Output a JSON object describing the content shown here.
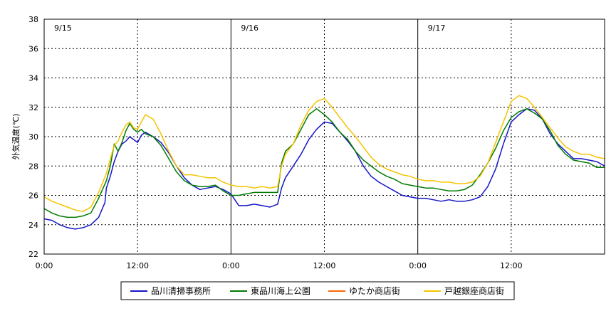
{
  "chart_data": {
    "type": "line",
    "ylabel": "外気温度(℃)",
    "ylim": [
      22,
      38
    ],
    "yticks": [
      "22",
      "24",
      "26",
      "28",
      "30",
      "32",
      "34",
      "36",
      "38"
    ],
    "xlim_hours": [
      0,
      72
    ],
    "xticks": [
      {
        "hour": 0,
        "label": "0:00"
      },
      {
        "hour": 12,
        "label": "12:00"
      },
      {
        "hour": 24,
        "label": "0:00"
      },
      {
        "hour": 36,
        "label": "12:00"
      },
      {
        "hour": 48,
        "label": "0:00"
      },
      {
        "hour": 60,
        "label": "12:00"
      }
    ],
    "day_labels": [
      {
        "hour": 0,
        "label": "9/15"
      },
      {
        "hour": 24,
        "label": "9/16"
      },
      {
        "hour": 48,
        "label": "9/17"
      }
    ],
    "grid": "dotted",
    "legend_position": "bottom",
    "series": [
      {
        "name": "品川清掃事務所",
        "color": "#1515c8",
        "points": [
          [
            0,
            24.4
          ],
          [
            1,
            24.3
          ],
          [
            2,
            24.0
          ],
          [
            3,
            23.8
          ],
          [
            4,
            23.7
          ],
          [
            5,
            23.8
          ],
          [
            6,
            24.0
          ],
          [
            7,
            24.5
          ],
          [
            7.8,
            25.5
          ],
          [
            8,
            26.5
          ],
          [
            8.5,
            27.3
          ],
          [
            9,
            28.3
          ],
          [
            9.5,
            29.0
          ],
          [
            10,
            29.5
          ],
          [
            10.5,
            29.7
          ],
          [
            11,
            30.0
          ],
          [
            11.5,
            29.8
          ],
          [
            12,
            29.6
          ],
          [
            12.5,
            30.1
          ],
          [
            13,
            30.3
          ],
          [
            14,
            30.0
          ],
          [
            15,
            29.6
          ],
          [
            16,
            28.9
          ],
          [
            17,
            28.0
          ],
          [
            18,
            27.2
          ],
          [
            19,
            26.7
          ],
          [
            20,
            26.4
          ],
          [
            21,
            26.5
          ],
          [
            22,
            26.6
          ],
          [
            23,
            26.4
          ],
          [
            24,
            26.1
          ],
          [
            25,
            25.3
          ],
          [
            26,
            25.3
          ],
          [
            27,
            25.4
          ],
          [
            28,
            25.3
          ],
          [
            29,
            25.2
          ],
          [
            30,
            25.4
          ],
          [
            30.5,
            26.5
          ],
          [
            31,
            27.2
          ],
          [
            32,
            28.0
          ],
          [
            33,
            28.8
          ],
          [
            34,
            29.8
          ],
          [
            35,
            30.5
          ],
          [
            36,
            31.0
          ],
          [
            37,
            30.9
          ],
          [
            38,
            30.3
          ],
          [
            39,
            29.7
          ],
          [
            40,
            29.0
          ],
          [
            41,
            28.0
          ],
          [
            42,
            27.3
          ],
          [
            43,
            26.9
          ],
          [
            44,
            26.6
          ],
          [
            45,
            26.3
          ],
          [
            46,
            26.0
          ],
          [
            47,
            25.9
          ],
          [
            48,
            25.8
          ],
          [
            49,
            25.8
          ],
          [
            50,
            25.7
          ],
          [
            51,
            25.6
          ],
          [
            52,
            25.7
          ],
          [
            53,
            25.6
          ],
          [
            54,
            25.6
          ],
          [
            55,
            25.7
          ],
          [
            56,
            25.9
          ],
          [
            57,
            26.6
          ],
          [
            58,
            27.8
          ],
          [
            59,
            29.5
          ],
          [
            60,
            31.0
          ],
          [
            61,
            31.5
          ],
          [
            62,
            31.9
          ],
          [
            63,
            31.8
          ],
          [
            64,
            31.2
          ],
          [
            65,
            30.2
          ],
          [
            66,
            29.5
          ],
          [
            67,
            29.0
          ],
          [
            68,
            28.5
          ],
          [
            69,
            28.5
          ],
          [
            70,
            28.4
          ],
          [
            71,
            28.3
          ],
          [
            72,
            28.0
          ]
        ]
      },
      {
        "name": "東品川海上公園",
        "color": "#007a00",
        "points": [
          [
            0,
            25.1
          ],
          [
            1,
            24.8
          ],
          [
            2,
            24.6
          ],
          [
            3,
            24.5
          ],
          [
            4,
            24.5
          ],
          [
            5,
            24.6
          ],
          [
            6,
            24.8
          ],
          [
            7,
            25.8
          ],
          [
            8,
            27.0
          ],
          [
            8.5,
            28.0
          ],
          [
            9,
            29.5
          ],
          [
            9.5,
            29.0
          ],
          [
            10,
            29.6
          ],
          [
            10.5,
            30.4
          ],
          [
            11,
            30.9
          ],
          [
            11.5,
            30.5
          ],
          [
            12,
            30.3
          ],
          [
            12.5,
            30.5
          ],
          [
            13,
            30.2
          ],
          [
            14,
            30.0
          ],
          [
            15,
            29.4
          ],
          [
            16,
            28.5
          ],
          [
            17,
            27.6
          ],
          [
            18,
            27.0
          ],
          [
            19,
            26.7
          ],
          [
            20,
            26.6
          ],
          [
            21,
            26.6
          ],
          [
            22,
            26.7
          ],
          [
            23,
            26.3
          ],
          [
            24,
            26.0
          ],
          [
            25,
            26.0
          ],
          [
            26,
            26.1
          ],
          [
            27,
            26.2
          ],
          [
            28,
            26.2
          ],
          [
            29,
            26.2
          ],
          [
            30,
            26.2
          ],
          [
            30.5,
            28.2
          ],
          [
            31,
            29.0
          ],
          [
            32,
            29.5
          ],
          [
            33,
            30.5
          ],
          [
            34,
            31.5
          ],
          [
            35,
            31.9
          ],
          [
            36,
            31.5
          ],
          [
            37,
            31.0
          ],
          [
            38,
            30.3
          ],
          [
            39,
            29.8
          ],
          [
            40,
            29.0
          ],
          [
            41,
            28.4
          ],
          [
            42,
            28.0
          ],
          [
            43,
            27.6
          ],
          [
            44,
            27.3
          ],
          [
            45,
            27.1
          ],
          [
            46,
            26.8
          ],
          [
            47,
            26.7
          ],
          [
            48,
            26.6
          ],
          [
            49,
            26.5
          ],
          [
            50,
            26.5
          ],
          [
            51,
            26.4
          ],
          [
            52,
            26.3
          ],
          [
            53,
            26.3
          ],
          [
            54,
            26.4
          ],
          [
            55,
            26.7
          ],
          [
            56,
            27.4
          ],
          [
            57,
            28.2
          ],
          [
            58,
            29.2
          ],
          [
            59,
            30.4
          ],
          [
            60,
            31.3
          ],
          [
            61,
            31.7
          ],
          [
            62,
            31.9
          ],
          [
            63,
            31.6
          ],
          [
            64,
            31.2
          ],
          [
            65,
            30.4
          ],
          [
            66,
            29.4
          ],
          [
            67,
            28.8
          ],
          [
            68,
            28.4
          ],
          [
            69,
            28.3
          ],
          [
            70,
            28.2
          ],
          [
            71,
            27.9
          ],
          [
            72,
            27.9
          ]
        ]
      },
      {
        "name": "ゆたか商店街",
        "color": "#ff6600",
        "points": []
      },
      {
        "name": "戸越銀座商店街",
        "color": "#f5c400",
        "points": [
          [
            0,
            25.9
          ],
          [
            1,
            25.6
          ],
          [
            2,
            25.4
          ],
          [
            3,
            25.2
          ],
          [
            4,
            25.0
          ],
          [
            5,
            24.9
          ],
          [
            6,
            25.2
          ],
          [
            7,
            26.2
          ],
          [
            8,
            27.5
          ],
          [
            8.5,
            28.5
          ],
          [
            9,
            29.4
          ],
          [
            9.5,
            29.7
          ],
          [
            10,
            30.3
          ],
          [
            10.5,
            30.8
          ],
          [
            11,
            31.0
          ],
          [
            11.5,
            30.6
          ],
          [
            12,
            30.5
          ],
          [
            12.5,
            31.0
          ],
          [
            13,
            31.5
          ],
          [
            14,
            31.2
          ],
          [
            15,
            30.2
          ],
          [
            16,
            29.0
          ],
          [
            17,
            28.0
          ],
          [
            18,
            27.4
          ],
          [
            19,
            27.4
          ],
          [
            20,
            27.3
          ],
          [
            21,
            27.2
          ],
          [
            22,
            27.2
          ],
          [
            23,
            26.9
          ],
          [
            24,
            26.7
          ],
          [
            25,
            26.6
          ],
          [
            26,
            26.6
          ],
          [
            27,
            26.5
          ],
          [
            28,
            26.6
          ],
          [
            29,
            26.5
          ],
          [
            30,
            26.6
          ],
          [
            30.5,
            28.0
          ],
          [
            31,
            28.8
          ],
          [
            32,
            29.5
          ],
          [
            33,
            30.8
          ],
          [
            34,
            31.8
          ],
          [
            35,
            32.4
          ],
          [
            36,
            32.6
          ],
          [
            37,
            32.0
          ],
          [
            38,
            31.3
          ],
          [
            39,
            30.6
          ],
          [
            40,
            30.0
          ],
          [
            41,
            29.3
          ],
          [
            42,
            28.6
          ],
          [
            43,
            28.1
          ],
          [
            44,
            27.8
          ],
          [
            45,
            27.6
          ],
          [
            46,
            27.4
          ],
          [
            47,
            27.3
          ],
          [
            48,
            27.1
          ],
          [
            49,
            27.0
          ],
          [
            50,
            27.0
          ],
          [
            51,
            26.9
          ],
          [
            52,
            26.9
          ],
          [
            53,
            26.8
          ],
          [
            54,
            26.8
          ],
          [
            55,
            26.9
          ],
          [
            56,
            27.3
          ],
          [
            57,
            28.2
          ],
          [
            58,
            29.6
          ],
          [
            59,
            31.0
          ],
          [
            60,
            32.4
          ],
          [
            61,
            32.8
          ],
          [
            62,
            32.6
          ],
          [
            63,
            32.0
          ],
          [
            64,
            31.3
          ],
          [
            65,
            30.6
          ],
          [
            66,
            29.9
          ],
          [
            67,
            29.3
          ],
          [
            68,
            29.0
          ],
          [
            69,
            28.8
          ],
          [
            70,
            28.8
          ],
          [
            71,
            28.6
          ],
          [
            72,
            28.5
          ]
        ]
      }
    ]
  }
}
